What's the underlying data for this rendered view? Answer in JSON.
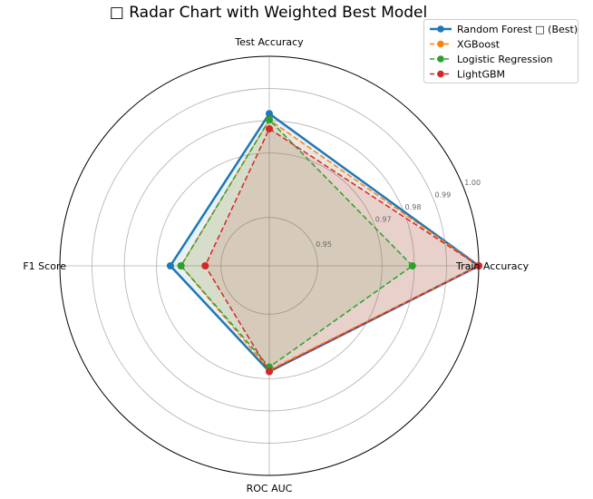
{
  "chart_data": {
    "type": "radar",
    "title": "□ Radar Chart with Weighted Best Model",
    "axes": [
      "Train Accuracy",
      "Test Accuracy",
      "F1 Score",
      "ROC AUC"
    ],
    "radial_ticks": [
      "0.95",
      "0.97",
      "0.98",
      "0.99",
      "1.00"
    ],
    "radial_tick_values": [
      0.95,
      0.97,
      0.98,
      0.99,
      1.0
    ],
    "rlim": [
      0.935,
      1.0
    ],
    "grid": true,
    "legend_position": "top-right",
    "series": [
      {
        "name": "Random Forest □ (Best)",
        "color": "#1f77b4",
        "style": "solid",
        "values": [
          1.0,
          0.9822,
          0.9657,
          0.9678
        ]
      },
      {
        "name": "XGBoost",
        "color": "#ff7f0e",
        "style": "dashed",
        "values": [
          1.0,
          0.9803,
          0.9624,
          0.9673
        ]
      },
      {
        "name": "Logistic Regression",
        "color": "#2ca02c",
        "style": "dashed",
        "values": [
          0.9794,
          0.9803,
          0.9624,
          0.9664
        ]
      },
      {
        "name": "LightGBM",
        "color": "#d62728",
        "style": "dashed",
        "values": [
          1.0,
          0.9775,
          0.9549,
          0.9678
        ]
      }
    ]
  }
}
